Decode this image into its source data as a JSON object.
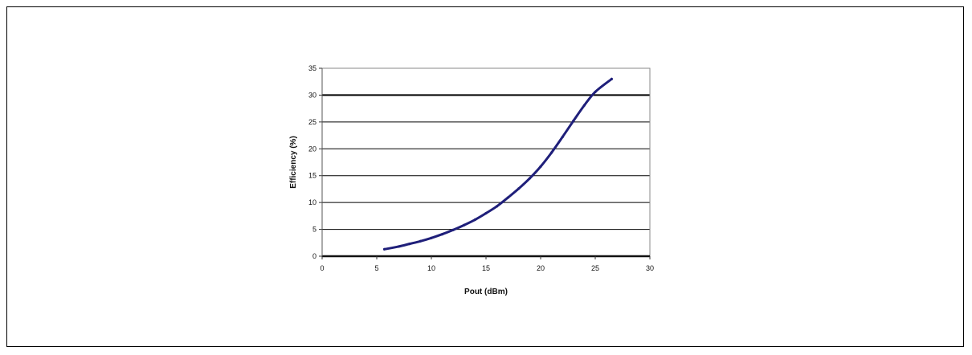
{
  "chart_data": {
    "type": "line",
    "title": "",
    "xlabel": "Pout (dBm)",
    "ylabel": "Efficiency (%)",
    "xlim": [
      0,
      30
    ],
    "ylim": [
      0,
      35
    ],
    "x_ticks": [
      "0",
      "5",
      "10",
      "15",
      "20",
      "25",
      "30"
    ],
    "y_ticks": [
      "0",
      "5",
      "10",
      "15",
      "20",
      "25",
      "30",
      "35"
    ],
    "grid": "horizontal",
    "legend": "none",
    "colors": {
      "line": "#1f1f7a",
      "grid": "#000000",
      "background": "#ffffff"
    },
    "series": [
      {
        "x": [
          5.7,
          7,
          8,
          9,
          10,
          11,
          12,
          13,
          14,
          15,
          16,
          17,
          18,
          19,
          20,
          21,
          22,
          23,
          24,
          25,
          26.5
        ],
        "y": [
          1.3,
          1.8,
          2.3,
          2.8,
          3.4,
          4.1,
          4.9,
          5.8,
          6.8,
          8.0,
          9.3,
          10.9,
          12.6,
          14.5,
          16.7,
          19.3,
          22.2,
          25.2,
          28.1,
          30.6,
          33.0
        ]
      }
    ]
  }
}
